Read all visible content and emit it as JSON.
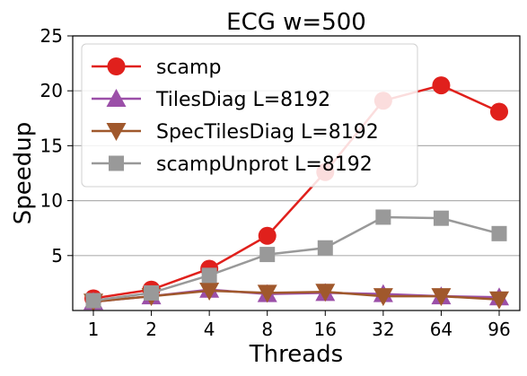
{
  "chart_data": {
    "type": "line",
    "title": "ECG w=500",
    "xlabel": "Threads",
    "ylabel": "Speedup",
    "categories": [
      "1",
      "2",
      "4",
      "8",
      "16",
      "32",
      "64",
      "96"
    ],
    "ylim": [
      0,
      25
    ],
    "yticks": [
      5,
      10,
      15,
      20,
      25
    ],
    "grid": "horizontal",
    "legend_position": "top-left",
    "series": [
      {
        "name": "scamp",
        "color": "#e0201c",
        "marker": "circle",
        "values": [
          1.1,
          1.9,
          3.8,
          6.8,
          12.6,
          19.1,
          20.5,
          18.1
        ]
      },
      {
        "name": "TilesDiag L=8192",
        "color": "#9b4fa8",
        "marker": "triangle-up",
        "values": [
          0.8,
          1.3,
          1.9,
          1.5,
          1.6,
          1.5,
          1.3,
          1.2
        ]
      },
      {
        "name": "SpecTilesDiag L=8192",
        "color": "#a0582c",
        "marker": "triangle-down",
        "values": [
          0.8,
          1.3,
          1.8,
          1.6,
          1.7,
          1.3,
          1.3,
          1.0
        ]
      },
      {
        "name": "scampUnprot L=8192",
        "color": "#999999",
        "marker": "square",
        "values": [
          0.9,
          1.6,
          3.2,
          5.1,
          5.7,
          8.5,
          8.4,
          7.0
        ]
      }
    ]
  }
}
